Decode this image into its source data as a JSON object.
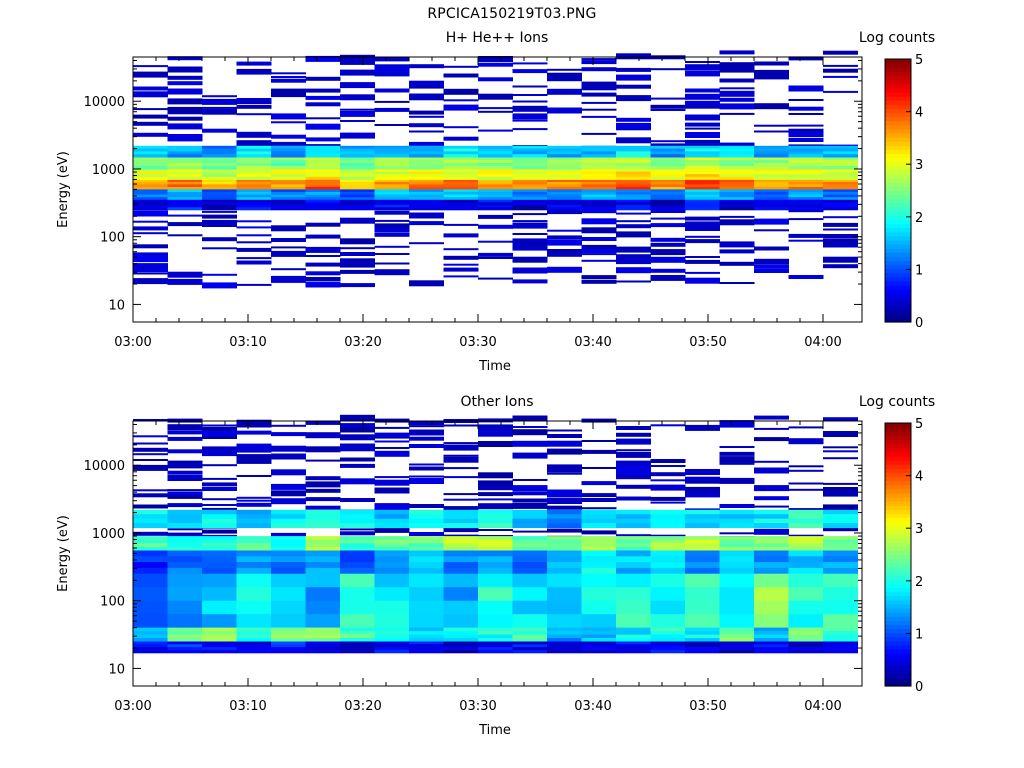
{
  "figure": {
    "title": "RPCICA150219T03.PNG"
  },
  "chart_data": [
    {
      "type": "heatmap",
      "title": "H+ He++ Ions",
      "xlabel": "Time",
      "ylabel": "Energy (eV)",
      "x_ticks": [
        "03:00",
        "03:10",
        "03:20",
        "03:30",
        "03:40",
        "03:50",
        "04:00"
      ],
      "y_scale": "log",
      "y_ticks": [
        "10",
        "100",
        "1000",
        "10000"
      ],
      "ylim": [
        5.5,
        45000
      ],
      "colorbar": {
        "label": "Log counts",
        "ticks": [
          "0",
          "1",
          "2",
          "3",
          "4",
          "5"
        ],
        "range": [
          0,
          5
        ]
      },
      "time_bins": [
        "03:00",
        "03:03",
        "03:06",
        "03:09",
        "03:12",
        "03:15",
        "03:18",
        "03:21",
        "03:24",
        "03:27",
        "03:30",
        "03:33",
        "03:36",
        "03:39",
        "03:42",
        "03:45",
        "03:48",
        "03:51",
        "03:54",
        "03:57",
        "04:00"
      ],
      "profile": [
        {
          "energy": [
            500,
            700
          ],
          "level": [
            3.6,
            3.8,
            3.4,
            3.6,
            3.6,
            4.0,
            3.4,
            3.6,
            3.8,
            3.8,
            3.6,
            3.6,
            3.7,
            3.8,
            4.0,
            3.6,
            4.1,
            3.8,
            3.6,
            3.7,
            3.6
          ]
        },
        {
          "energy": [
            700,
            1000
          ],
          "level": [
            3.0,
            3.0,
            2.8,
            3.0,
            3.0,
            3.2,
            2.9,
            3.0,
            3.1,
            3.1,
            3.0,
            3.0,
            3.0,
            3.1,
            3.2,
            3.0,
            3.3,
            3.1,
            3.0,
            3.0,
            3.0
          ]
        },
        {
          "energy": [
            1000,
            1500
          ],
          "level": [
            2.4,
            2.6,
            2.4,
            2.6,
            2.4,
            2.8,
            2.4,
            2.6,
            2.6,
            2.6,
            2.6,
            2.5,
            2.6,
            2.6,
            2.8,
            2.6,
            2.8,
            2.6,
            2.6,
            2.6,
            2.6
          ]
        },
        {
          "energy": [
            1500,
            2200
          ],
          "level": [
            1.6,
            1.4,
            1.2,
            1.8,
            1.4,
            1.8,
            1.4,
            1.6,
            1.4,
            1.8,
            1.6,
            1.6,
            1.4,
            1.6,
            1.8,
            1.4,
            1.8,
            1.6,
            1.4,
            1.6,
            1.6
          ]
        },
        {
          "energy": [
            350,
            500
          ],
          "level": [
            1.2,
            1.6,
            1.0,
            1.4,
            1.2,
            1.4,
            1.0,
            1.6,
            1.4,
            1.6,
            1.4,
            1.2,
            1.4,
            1.6,
            1.4,
            1.2,
            1.6,
            1.4,
            1.2,
            1.4,
            1.2
          ]
        },
        {
          "energy": [
            250,
            350
          ],
          "level": [
            0.4,
            0.8,
            0.4,
            0.6,
            0.4,
            0.6,
            0.4,
            0.6,
            0.6,
            0.4,
            0.6,
            0.4,
            0.6,
            0.4,
            0.6,
            0.4,
            0.8,
            0.4,
            0.6,
            0.4,
            0.4
          ]
        }
      ],
      "sparse_level": 0.2
    },
    {
      "type": "heatmap",
      "title": "Other Ions",
      "xlabel": "Time",
      "ylabel": "Energy (eV)",
      "x_ticks": [
        "03:00",
        "03:10",
        "03:20",
        "03:30",
        "03:40",
        "03:50",
        "04:00"
      ],
      "y_scale": "log",
      "y_ticks": [
        "10",
        "100",
        "1000",
        "10000"
      ],
      "ylim": [
        5.5,
        45000
      ],
      "colorbar": {
        "label": "Log counts",
        "ticks": [
          "0",
          "1",
          "2",
          "3",
          "4",
          "5"
        ],
        "range": [
          0,
          5
        ]
      },
      "time_bins": [
        "03:00",
        "03:03",
        "03:06",
        "03:09",
        "03:12",
        "03:15",
        "03:18",
        "03:21",
        "03:24",
        "03:27",
        "03:30",
        "03:33",
        "03:36",
        "03:39",
        "03:42",
        "03:45",
        "03:48",
        "03:51",
        "03:54",
        "03:57",
        "04:00"
      ],
      "profile": [
        {
          "energy": [
            1200,
            2200
          ],
          "level": [
            1.8,
            1.6,
            1.8,
            1.6,
            1.8,
            2.0,
            1.8,
            1.6,
            1.8,
            1.8,
            2.0,
            1.6,
            1.2,
            1.8,
            1.6,
            2.0,
            1.8,
            1.6,
            1.8,
            2.0,
            1.8
          ]
        },
        {
          "energy": [
            550,
            900
          ],
          "level": [
            2.2,
            2.0,
            2.0,
            2.2,
            2.0,
            2.6,
            2.2,
            2.4,
            2.4,
            2.8,
            2.8,
            2.4,
            2.4,
            2.6,
            2.4,
            2.6,
            2.8,
            2.4,
            2.6,
            2.8,
            2.4
          ]
        },
        {
          "energy": [
            250,
            550
          ],
          "level": [
            0.8,
            1.2,
            1.0,
            1.4,
            1.2,
            1.4,
            1.0,
            1.2,
            1.6,
            1.2,
            1.4,
            1.2,
            1.4,
            1.8,
            1.6,
            1.8,
            1.2,
            1.6,
            1.4,
            1.6,
            1.4
          ]
        },
        {
          "energy": [
            40,
            250
          ],
          "level": [
            1.2,
            1.4,
            1.6,
            1.8,
            1.6,
            1.4,
            2.0,
            1.8,
            1.6,
            1.4,
            2.0,
            1.8,
            1.6,
            1.8,
            2.0,
            1.8,
            2.2,
            1.8,
            2.6,
            2.0,
            2.2
          ]
        },
        {
          "energy": [
            25,
            40
          ],
          "level": [
            1.6,
            2.4,
            2.8,
            2.0,
            2.4,
            2.6,
            2.2,
            2.0,
            1.6,
            1.8,
            2.0,
            2.2,
            1.4,
            1.6,
            1.8,
            2.0,
            1.8,
            2.4,
            1.6,
            2.6,
            2.2
          ]
        },
        {
          "energy": [
            17,
            25
          ],
          "level": [
            0.6,
            0.8,
            0.6,
            0.4,
            0.8,
            0.6,
            0.4,
            0.6,
            0.6,
            0.4,
            0.6,
            0.6,
            0.4,
            0.4,
            0.6,
            0.6,
            0.4,
            0.4,
            0.6,
            0.4,
            0.6
          ]
        }
      ],
      "sparse_level": 0.15
    }
  ]
}
